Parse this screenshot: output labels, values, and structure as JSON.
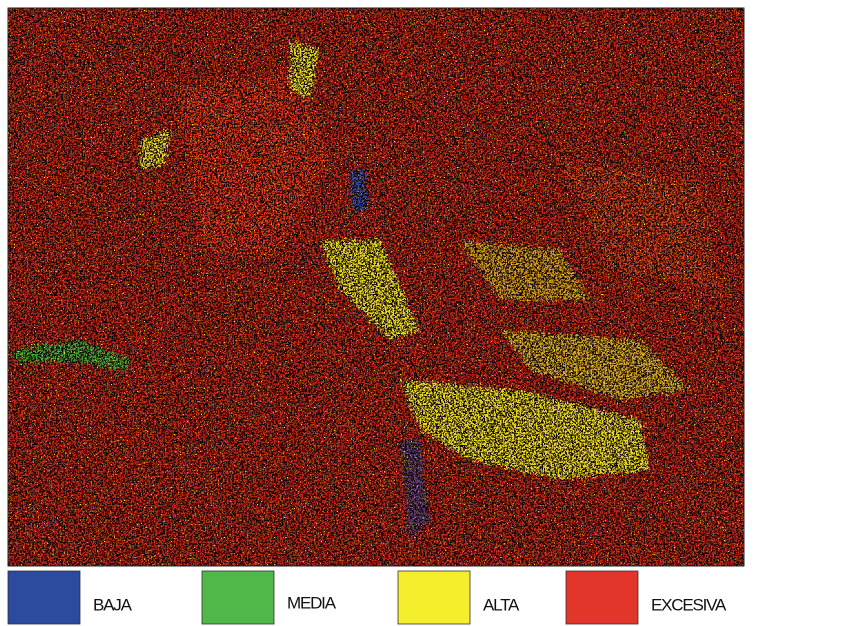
{
  "legend": {
    "items": [
      {
        "label": "BAJA",
        "color": "#2c4a9e"
      },
      {
        "label": "MEDIA",
        "color": "#4fb848"
      },
      {
        "label": "ALTA",
        "color": "#f4ee2c"
      },
      {
        "label": "EXCESIVA",
        "color": "#e2362b"
      }
    ]
  }
}
